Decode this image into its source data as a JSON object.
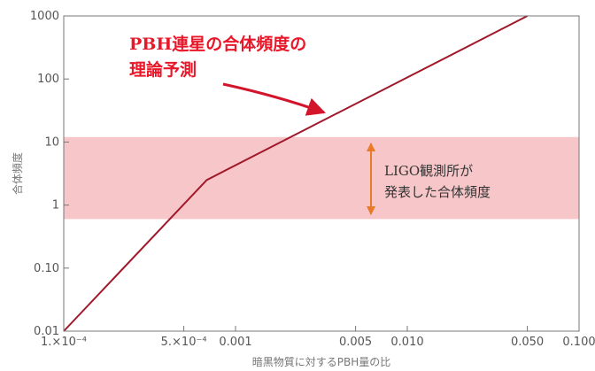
{
  "chart_data": {
    "type": "line",
    "title": "",
    "xlabel": "暗黒物質に対するPBH量の比",
    "ylabel": "合体頻度",
    "xscale": "log",
    "yscale": "log",
    "xlim": [
      0.0001,
      0.1
    ],
    "ylim": [
      0.01,
      1000
    ],
    "grid": false,
    "x_ticks": [
      {
        "value": 0.0001,
        "label": "1.×10⁻⁴"
      },
      {
        "value": 0.0005,
        "label": "5.×10⁻⁴"
      },
      {
        "value": 0.001,
        "label": "0.001"
      },
      {
        "value": 0.005,
        "label": "0.005"
      },
      {
        "value": 0.01,
        "label": "0.010"
      },
      {
        "value": 0.05,
        "label": "0.050"
      },
      {
        "value": 0.1,
        "label": "0.100"
      }
    ],
    "y_ticks": [
      {
        "value": 0.01,
        "label": "0.01"
      },
      {
        "value": 0.1,
        "label": "0.10"
      },
      {
        "value": 1,
        "label": "1"
      },
      {
        "value": 10,
        "label": "10"
      },
      {
        "value": 100,
        "label": "100"
      },
      {
        "value": 1000,
        "label": "1000"
      }
    ],
    "series": [
      {
        "color": "#a0182a",
        "x": [
          0.0001,
          0.00068,
          0.05
        ],
        "y": [
          0.01,
          2.5,
          1000
        ]
      }
    ],
    "band": {
      "ymin": 0.6,
      "ymax": 12,
      "color": "#f7c6c8"
    },
    "annotations": {
      "prediction_line1": "PBH連星の合体頻度の",
      "prediction_line2": "理論予測",
      "ligo_line1": "LIGO観測所が",
      "ligo_line2": "発表した合体頻度"
    },
    "colors": {
      "prediction_text": "#e8182a",
      "prediction_arrow": "#d4142a",
      "ligo_arrow": "#e87a28",
      "frame": "#777777"
    }
  }
}
